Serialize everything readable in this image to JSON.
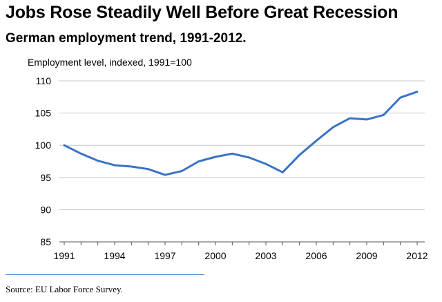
{
  "title": "Jobs Rose Steadily Well Before Great Recession",
  "subtitle": "German employment trend, 1991-2012.",
  "source": "Source: EU Labor Force Survey.",
  "colors": {
    "line": "#3a72c4",
    "grid": "#c8c8c8",
    "axis": "#555555",
    "rule": "#4a7fc1"
  },
  "chart_data": {
    "type": "line",
    "ylabel": "Employment level, indexed, 1991=100",
    "xlabel": "",
    "x": [
      1991,
      1992,
      1993,
      1994,
      1995,
      1996,
      1997,
      1998,
      1999,
      2000,
      2001,
      2002,
      2003,
      2004,
      2005,
      2006,
      2007,
      2008,
      2009,
      2010,
      2011,
      2012
    ],
    "series": [
      {
        "values": [
          100.0,
          98.7,
          97.6,
          96.9,
          96.7,
          96.3,
          95.4,
          96.0,
          97.5,
          98.2,
          98.7,
          98.1,
          97.1,
          95.8,
          98.5,
          100.7,
          102.8,
          104.2,
          104.0,
          104.7,
          107.4,
          108.3
        ]
      }
    ],
    "xticks": [
      1991,
      1994,
      1997,
      2000,
      2003,
      2006,
      2009,
      2012
    ],
    "yticks": [
      85,
      90,
      95,
      100,
      105,
      110
    ],
    "xlim": [
      1991,
      2012
    ],
    "ylim": [
      85,
      110
    ],
    "grid": "horizontal"
  }
}
